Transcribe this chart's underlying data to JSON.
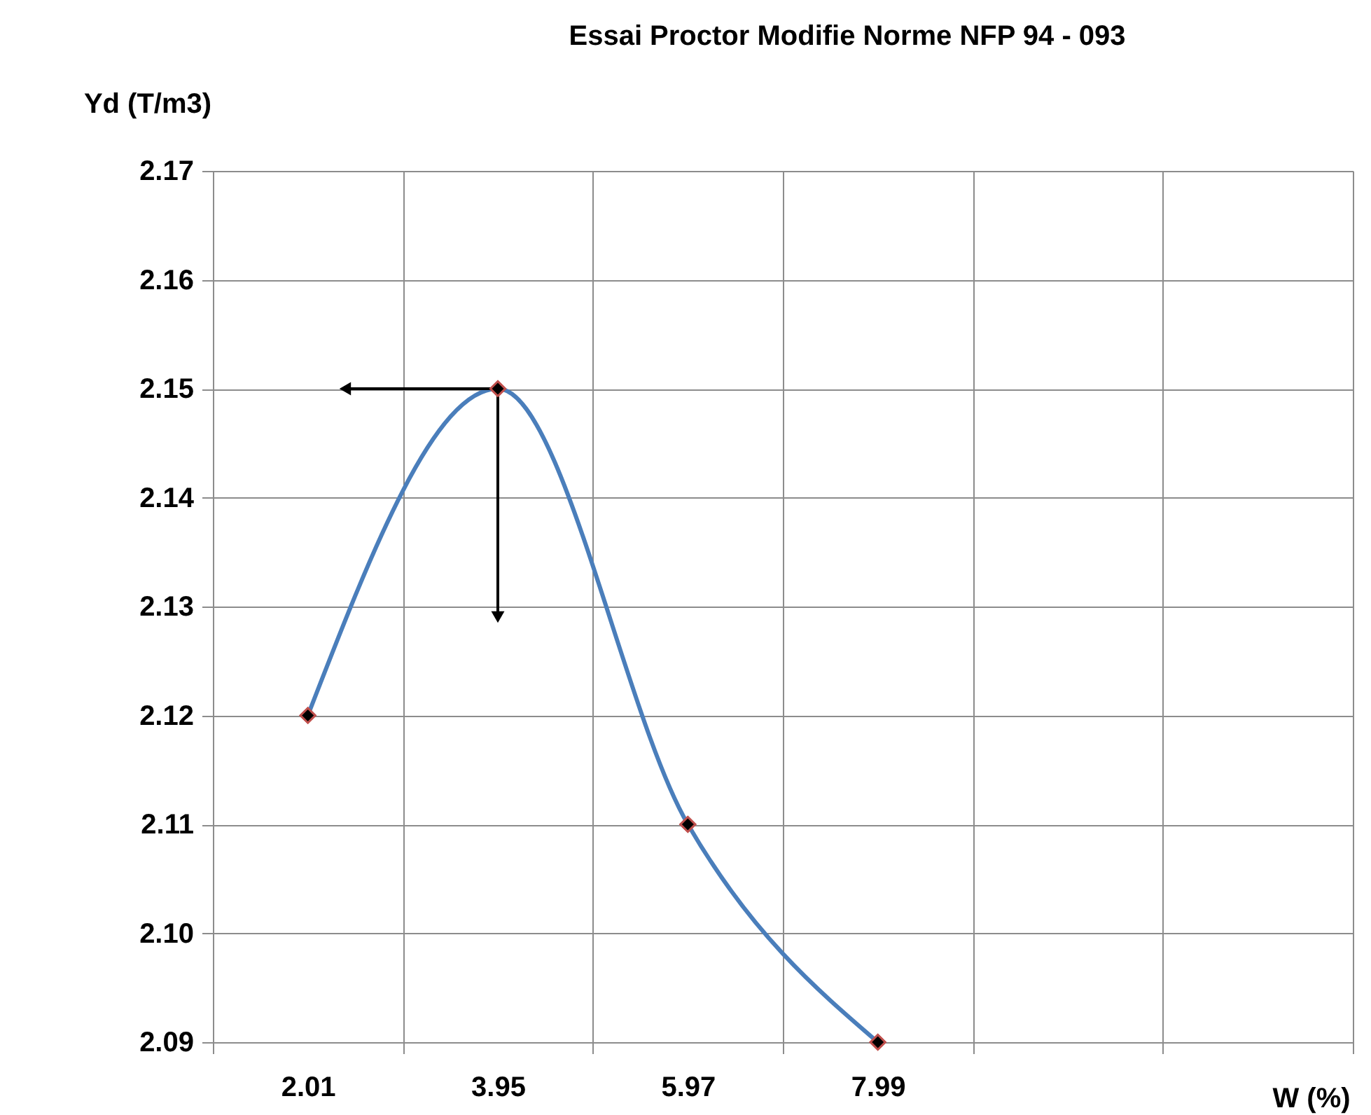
{
  "chart_data": {
    "type": "line",
    "title": "Essai  Proctor  Modifie  Norme NFP 94 - 093",
    "xlabel": "W (%)",
    "ylabel": "Yd (T/m3)",
    "categories": [
      "2.01",
      "3.95",
      "5.97",
      "7.99",
      null,
      null
    ],
    "series": [
      {
        "color": "#4a7ebb",
        "values": [
          2.12,
          2.15,
          2.11,
          2.09,
          null,
          null
        ]
      }
    ],
    "ylim": [
      2.09,
      2.17
    ],
    "yticks": [
      {
        "value": 2.09,
        "label": "2.09"
      },
      {
        "value": 2.1,
        "label": "2.10"
      },
      {
        "value": 2.11,
        "label": "2.11"
      },
      {
        "value": 2.12,
        "label": "2.12"
      },
      {
        "value": 2.13,
        "label": "2.13"
      },
      {
        "value": 2.14,
        "label": "2.14"
      },
      {
        "value": 2.15,
        "label": "2.15"
      },
      {
        "value": 2.16,
        "label": "2.16"
      },
      {
        "value": 2.17,
        "label": "2.17"
      }
    ],
    "grid": true,
    "marker": "diamond",
    "line_style": "solid"
  }
}
